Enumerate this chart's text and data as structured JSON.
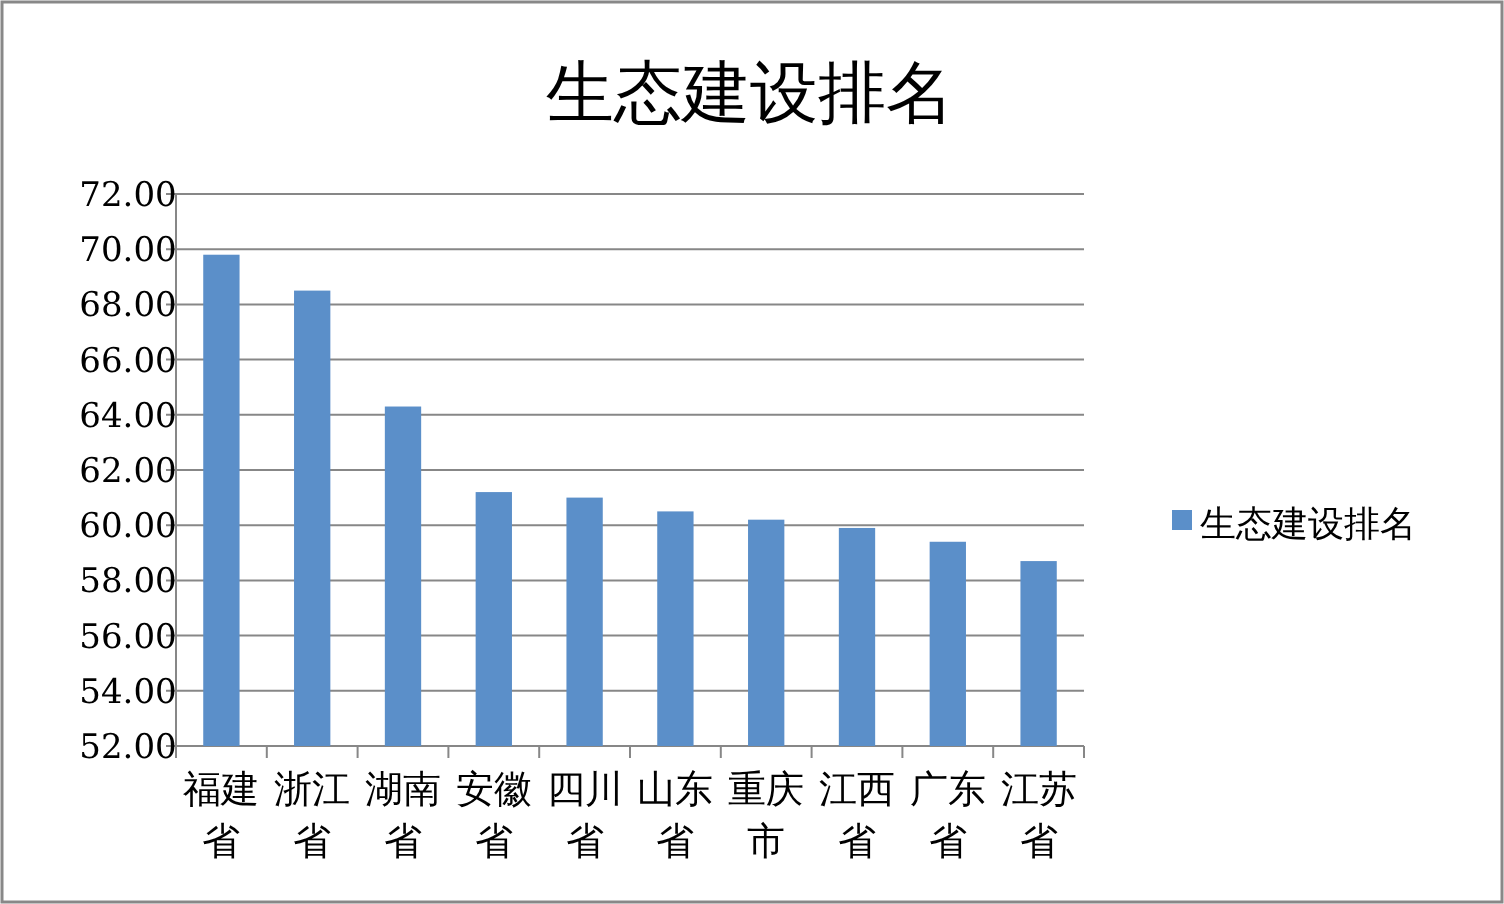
{
  "chart_data": {
    "type": "bar",
    "title": "生态建设排名",
    "categories": [
      "福建省",
      "浙江省",
      "湖南省",
      "安徽省",
      "四川省",
      "山东省",
      "重庆市",
      "江西省",
      "广东省",
      "江苏省"
    ],
    "series": [
      {
        "name": "生态建设排名",
        "color": "#5b8fc9",
        "values": [
          69.8,
          68.5,
          64.3,
          61.2,
          61.0,
          60.5,
          60.2,
          59.9,
          59.4,
          58.7
        ]
      }
    ],
    "ylim": [
      52,
      72
    ],
    "yticks": [
      {
        "value": 52,
        "label": "52.00"
      },
      {
        "value": 54,
        "label": "54.00"
      },
      {
        "value": 56,
        "label": "56.00"
      },
      {
        "value": 58,
        "label": "58.00"
      },
      {
        "value": 60,
        "label": "60.00"
      },
      {
        "value": 62,
        "label": "62.00"
      },
      {
        "value": 64,
        "label": "64.00"
      },
      {
        "value": 66,
        "label": "66.00"
      },
      {
        "value": 68,
        "label": "68.00"
      },
      {
        "value": 70,
        "label": "70.00"
      },
      {
        "value": 72,
        "label": "72.00"
      }
    ],
    "grid": "y",
    "legend": "right"
  }
}
